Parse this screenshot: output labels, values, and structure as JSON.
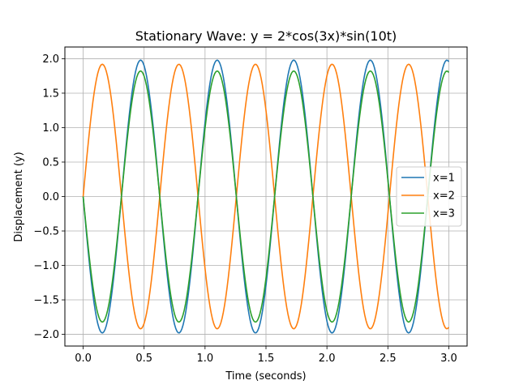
{
  "chart_data": {
    "type": "line",
    "title": "Stationary Wave: y = 2*cos(3x)*sin(10t)",
    "xlabel": "Time (seconds)",
    "ylabel": "Displacement (y)",
    "xlim": [
      -0.15,
      3.15
    ],
    "ylim": [
      -2.17,
      2.17
    ],
    "xticks": [
      0.0,
      0.5,
      1.0,
      1.5,
      2.0,
      2.5,
      3.0
    ],
    "xtick_labels": [
      "0.0",
      "0.5",
      "1.0",
      "1.5",
      "2.0",
      "2.5",
      "3.0"
    ],
    "yticks": [
      -2.0,
      -1.5,
      -1.0,
      -0.5,
      0.0,
      0.5,
      1.0,
      1.5,
      2.0
    ],
    "ytick_labels": [
      "−2.0",
      "−1.5",
      "−1.0",
      "−0.5",
      "0.0",
      "0.5",
      "1.0",
      "1.5",
      "2.0"
    ],
    "grid": true,
    "legend_position": "center-right",
    "x_range": [
      0,
      3
    ],
    "num_samples": 300,
    "series": [
      {
        "name": "x=1",
        "position": 1,
        "amplitude": -1.98,
        "angular_frequency": 10,
        "color": "#1f77b4"
      },
      {
        "name": "x=2",
        "position": 2,
        "amplitude": 1.92,
        "angular_frequency": 10,
        "color": "#ff7f0e"
      },
      {
        "name": "x=3",
        "position": 3,
        "amplitude": -1.822,
        "angular_frequency": 10,
        "color": "#2ca02c"
      }
    ]
  }
}
